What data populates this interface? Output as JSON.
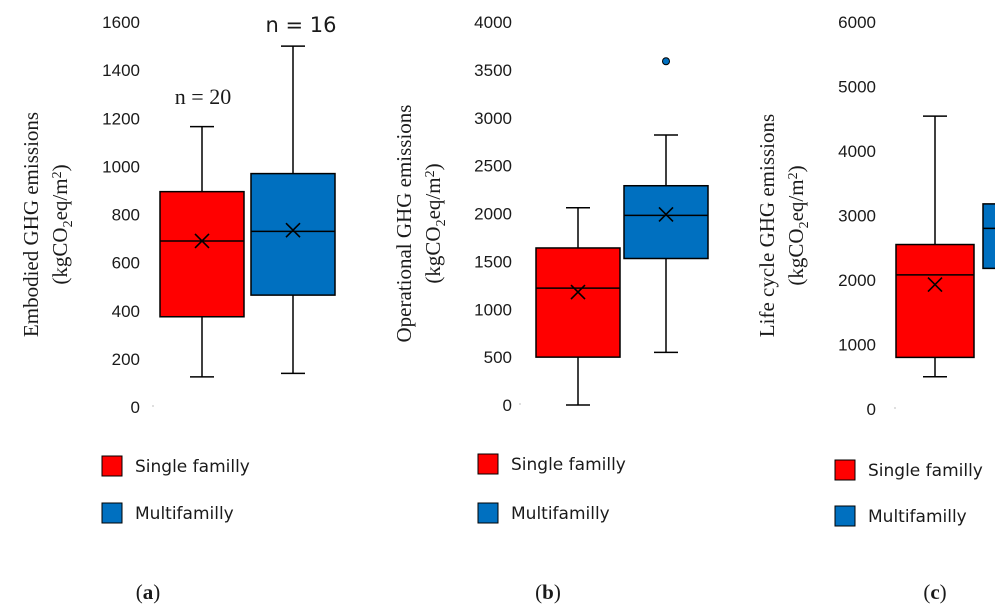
{
  "chart_data": [
    {
      "type": "box",
      "panel_label": "a",
      "ylabel": "Embodied GHG emissions",
      "ylabel_unit": "(kgCO2eq/m2)",
      "ylim": [
        0,
        1600
      ],
      "yticks": [
        "0",
        "200",
        "400",
        "600",
        "800",
        "1000",
        "1200",
        "1400",
        "1600"
      ],
      "series": [
        {
          "name": "Single familly",
          "color": "#ff0000",
          "whisker_low": 125,
          "q1": 375,
          "median": 690,
          "mean": 690,
          "q3": 895,
          "whisker_high": 1165,
          "outliers": [],
          "n_label": "n = 20"
        },
        {
          "name": "Multifamilly",
          "color": "#0070c0",
          "whisker_low": 140,
          "q1": 465,
          "median": 730,
          "mean": 735,
          "q3": 970,
          "whisker_high": 1500,
          "outliers": [],
          "n_label": "n = 16"
        }
      ]
    },
    {
      "type": "box",
      "panel_label": "b",
      "ylabel": "Operational GHG emissions",
      "ylabel_unit": "(kgCO2eq/m2)",
      "ylim": [
        0,
        4000
      ],
      "yticks": [
        "0",
        "500",
        "1000",
        "1500",
        "2000",
        "2500",
        "3000",
        "3500",
        "4000"
      ],
      "series": [
        {
          "name": "Single familly",
          "color": "#ff0000",
          "whisker_low": 0,
          "q1": 500,
          "median": 1220,
          "mean": 1180,
          "q3": 1640,
          "whisker_high": 2060,
          "outliers": []
        },
        {
          "name": "Multifamilly",
          "color": "#0070c0",
          "whisker_low": 550,
          "q1": 1530,
          "median": 1980,
          "mean": 1990,
          "q3": 2290,
          "whisker_high": 2820,
          "outliers": [
            3590
          ]
        }
      ]
    },
    {
      "type": "box",
      "panel_label": "c",
      "ylabel": "Life cycle GHG emissions",
      "ylabel_unit": "(kgCO2eq/m2)",
      "ylim": [
        0,
        6000
      ],
      "yticks": [
        "0",
        "1000",
        "2000",
        "3000",
        "4000",
        "5000",
        "6000"
      ],
      "series": [
        {
          "name": "Single familly",
          "color": "#ff0000",
          "whisker_low": 500,
          "q1": 800,
          "median": 2080,
          "mean": 1930,
          "q3": 2550,
          "whisker_high": 4540,
          "outliers": []
        },
        {
          "name": "Multifamilly",
          "color": "#0070c0",
          "whisker_low": null,
          "q1": 2180,
          "median": 2800,
          "mean": null,
          "q3": 3180,
          "whisker_high": null,
          "outliers": []
        }
      ]
    }
  ]
}
